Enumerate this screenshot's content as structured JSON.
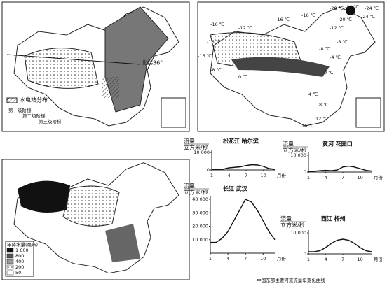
{
  "maps": {
    "terrain": {
      "hydro_legend": "水电站分布",
      "latitude": "北纬36°",
      "steps": [
        "第一级阶梯",
        "第二级阶梯",
        "第三级阶梯"
      ]
    },
    "temperature": {
      "labels": [
        "-28 ℃",
        "-24 ℃",
        "-28 ℃",
        "-24 ℃",
        "-20 ℃",
        "-16 ℃",
        "-16 ℃",
        "-16 ℃",
        "-12 ℃",
        "-16 ℃",
        "-12 ℃",
        "-8 ℃",
        "-8 ℃",
        "-4 ℃",
        "0 ℃",
        "0 ℃",
        "-8 ℃",
        "4 ℃",
        "8 ℃",
        "12 ℃",
        "16 ℃",
        "-16 ℃"
      ]
    },
    "precipitation": {
      "legend_title": "年降水量(毫米)",
      "legend_values": [
        "1 600",
        "800",
        "400",
        "200",
        "50"
      ]
    }
  },
  "chart_data": [
    {
      "type": "line",
      "title": "松花江 哈尔滨",
      "y_label": "流量",
      "y_unit": "立方米/秒",
      "x_label": "月份",
      "x": [
        1,
        2,
        3,
        4,
        5,
        6,
        7,
        8,
        9,
        10,
        11,
        12
      ],
      "values": [
        300,
        300,
        500,
        1200,
        1500,
        1800,
        2500,
        3000,
        2800,
        2000,
        800,
        400
      ],
      "xlim": [
        1,
        12
      ],
      "xticks": [
        1,
        4,
        7,
        10
      ],
      "ylim": [
        0,
        10000
      ],
      "yticks": [
        0,
        {
          "value": 10000,
          "label": "10 000"
        }
      ]
    },
    {
      "type": "line",
      "title": "黄河 花园口",
      "y_label": "流量",
      "y_unit": "立方米/秒",
      "x_label": "月份",
      "x": [
        1,
        2,
        3,
        4,
        5,
        6,
        7,
        8,
        9,
        10,
        11,
        12
      ],
      "values": [
        500,
        500,
        800,
        1000,
        800,
        1200,
        3000,
        3500,
        3000,
        2000,
        1000,
        600
      ],
      "xlim": [
        1,
        12
      ],
      "xticks": [
        1,
        4,
        7,
        10
      ],
      "ylim": [
        0,
        10000
      ],
      "yticks": [
        0,
        {
          "value": 10000,
          "label": "10 000"
        }
      ]
    },
    {
      "type": "line",
      "title": "长江 武汉",
      "y_label": "流量",
      "y_unit": "立方米/秒",
      "x_label": "月份",
      "x": [
        1,
        2,
        3,
        4,
        5,
        6,
        7,
        8,
        9,
        10,
        11,
        12
      ],
      "values": [
        8000,
        8000,
        11000,
        16000,
        24000,
        32000,
        40000,
        38000,
        32000,
        24000,
        16000,
        10000
      ],
      "xlim": [
        1,
        12
      ],
      "xticks": [
        1,
        4,
        7,
        10
      ],
      "ylim": [
        0,
        40000
      ],
      "yticks": [
        {
          "value": 10000,
          "label": "10 000"
        },
        {
          "value": 20000,
          "label": "20 000"
        },
        {
          "value": 30000,
          "label": "30 000"
        },
        {
          "value": 40000,
          "label": "40 000"
        }
      ]
    },
    {
      "type": "line",
      "title": "西江 梧州",
      "y_label": "流量",
      "y_unit": "立方米/秒",
      "x_label": "月份",
      "x": [
        1,
        2,
        3,
        4,
        5,
        6,
        7,
        8,
        9,
        10,
        11,
        12
      ],
      "values": [
        1000,
        1000,
        1500,
        3000,
        5000,
        6500,
        7000,
        6500,
        5000,
        3000,
        1500,
        1000
      ],
      "xlim": [
        1,
        12
      ],
      "xticks": [
        1,
        4,
        7,
        10
      ],
      "ylim": [
        0,
        10000
      ],
      "yticks": [
        0,
        {
          "value": 10000,
          "label": "10 000"
        }
      ]
    }
  ],
  "caption": "中国东部主要河流流量年变化曲线"
}
